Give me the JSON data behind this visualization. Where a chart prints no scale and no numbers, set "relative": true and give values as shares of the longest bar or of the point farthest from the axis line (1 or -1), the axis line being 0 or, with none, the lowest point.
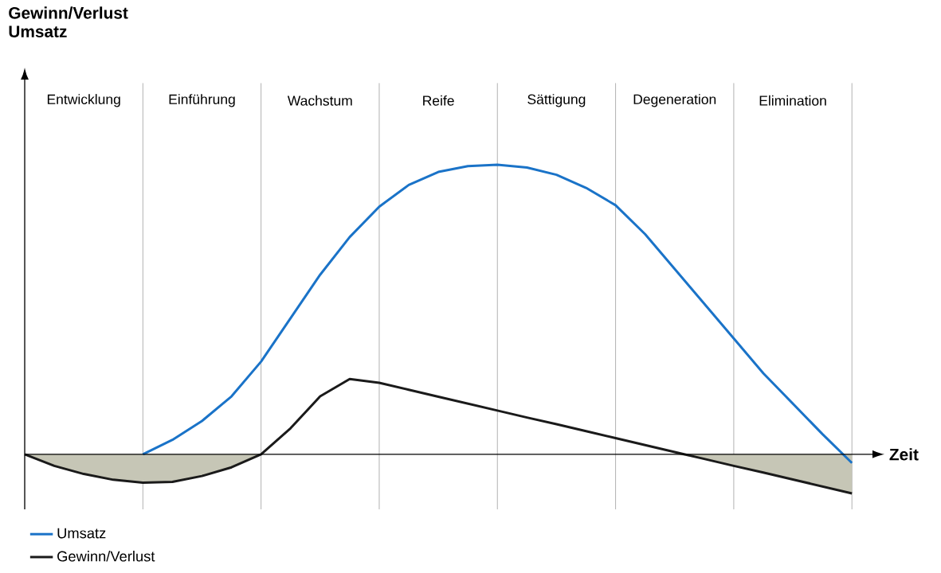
{
  "chart_data": {
    "type": "line",
    "relative": true,
    "xlabel": "Zeit",
    "ylabel": "Gewinn/Verlust Umsatz",
    "legend": "bottom left",
    "grid": "x",
    "categories": [
      null,
      null,
      "Entwicklung",
      null,
      null,
      null,
      "Einführung",
      null,
      null,
      null,
      "Wachstum",
      null,
      null,
      null,
      "Reife",
      null,
      null,
      null,
      "Sättigung",
      null,
      null,
      null,
      "Degeneration",
      null,
      null,
      null,
      "Elimination",
      null,
      null
    ],
    "series": [
      {
        "name": "Umsatz",
        "color": "#1a73c8",
        "values": [
          null,
          null,
          null,
          null,
          0,
          0.05,
          0.115,
          0.2,
          0.32,
          0.47,
          0.62,
          0.75,
          0.855,
          0.93,
          0.975,
          0.995,
          1.0,
          0.99,
          0.965,
          0.92,
          0.86,
          0.76,
          0.64,
          0.52,
          0.4,
          0.28,
          0.175,
          0.07,
          -0.03
        ]
      },
      {
        "name": "Gewinn/Verlust",
        "color": "#1a1a1a",
        "values": [
          0,
          -0.04,
          -0.068,
          -0.088,
          -0.098,
          -0.095,
          -0.075,
          -0.045,
          0,
          0.09,
          0.2,
          0.26,
          0.247,
          0.223,
          0.199,
          0.175,
          0.151,
          0.127,
          0.104,
          0.08,
          0.056,
          0.032,
          0.008,
          -0.016,
          -0.04,
          -0.063,
          -0.087,
          -0.111,
          -0.135
        ]
      },
      {
        "type": "area",
        "color": "#c6c6b6",
        "values": [
          0,
          -0.04,
          -0.068,
          -0.088,
          -0.098,
          -0.095,
          -0.075,
          -0.045,
          0,
          0,
          0,
          0,
          0,
          0,
          0,
          0,
          0,
          0,
          0,
          0,
          0,
          0,
          0,
          -0.016,
          -0.04,
          -0.063,
          -0.087,
          -0.111,
          -0.135
        ]
      }
    ]
  }
}
